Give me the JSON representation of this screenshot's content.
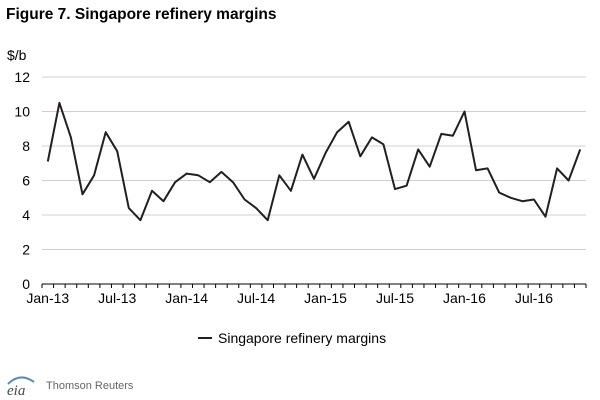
{
  "chart_data": {
    "type": "line",
    "title": "Figure 7. Singapore refinery margins",
    "ylabel": "$/b",
    "xlabel": "",
    "ylim": [
      0,
      12
    ],
    "yticks": [
      0,
      2,
      4,
      6,
      8,
      10,
      12
    ],
    "x_tick_labels": [
      "Jan-13",
      "Jul-13",
      "Jan-14",
      "Jul-14",
      "Jan-15",
      "Jul-15",
      "Jan-16",
      "Jul-16"
    ],
    "x_tick_months": [
      0,
      6,
      12,
      18,
      24,
      30,
      36,
      42
    ],
    "x_start": "Jan-13",
    "x_end": "Nov-16",
    "gridlines": "horizontal",
    "legend_position": "bottom-center",
    "series": [
      {
        "name": "Singapore refinery margins",
        "color": "#231f20",
        "values": [
          7.1,
          10.5,
          8.5,
          5.2,
          6.3,
          8.8,
          7.7,
          4.4,
          3.7,
          5.4,
          4.8,
          5.9,
          6.4,
          6.3,
          5.9,
          6.5,
          5.9,
          4.9,
          4.4,
          3.7,
          6.3,
          5.4,
          7.5,
          6.1,
          7.6,
          8.8,
          9.4,
          7.4,
          8.5,
          8.1,
          5.5,
          5.7,
          7.8,
          6.8,
          8.7,
          8.6,
          10.0,
          6.6,
          6.7,
          5.3,
          5.0,
          4.8,
          4.9,
          3.9,
          6.7,
          6.0,
          7.8
        ]
      }
    ]
  },
  "footer": {
    "logo_text": "eia",
    "source": "Thomson Reuters"
  }
}
